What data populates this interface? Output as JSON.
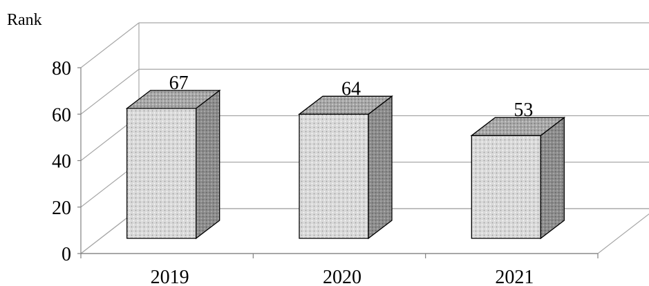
{
  "chart_data": {
    "type": "bar",
    "style": "3d-column",
    "title": "",
    "xlabel": "",
    "ylabel": "Rank",
    "categories": [
      "2019",
      "2020",
      "2021"
    ],
    "values": [
      67,
      64,
      53
    ],
    "data_labels": [
      "67",
      "64",
      "53"
    ],
    "ylim": [
      0,
      80
    ],
    "yticks": [
      "0",
      "20",
      "40",
      "60",
      "80"
    ],
    "grid": true,
    "legend": "none",
    "colors": {
      "bar_front": "#d9d9d9",
      "bar_side": "#8c8c8c",
      "bar_top": "#a6a6a6",
      "outline": "#000000",
      "grid": "#a6a6a6"
    }
  }
}
